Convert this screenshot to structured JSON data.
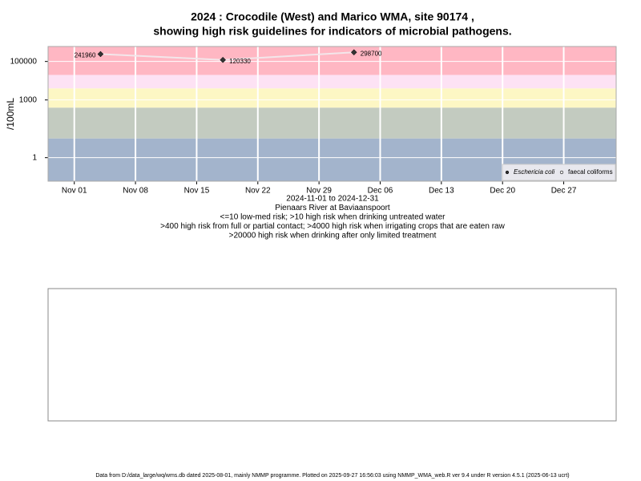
{
  "chart_data": {
    "type": "scatter",
    "title": "2024 : Crocodile (West) and Marico WMA, site 90174 ,",
    "subtitle": "showing high risk guidelines for indicators of microbial pathogens.",
    "ylabel": "/100mL",
    "xlabel_lines": [
      "2024-11-01 to 2024-12-31",
      "Pienaars River at Baviaanspoort",
      "<=10 low-med risk; >10 high risk when drinking untreated water",
      ">400 high risk from full or partial contact; >4000 high risk when irrigating crops that are eaten raw",
      ">20000 high risk when drinking after only limited treatment"
    ],
    "footer": "Data from D:/data_large/wq/wms.db dated 2025-08-01, mainly NMMP programme. Plotted on 2025-09-27 16:56:03 using NMMP_WMA_web.R ver 9.4 under R version 4.5.1 (2025-06-13 ucrt)",
    "ylog": true,
    "ylim": [
      0.06,
      600000
    ],
    "yticks": [
      1,
      1000,
      100000
    ],
    "xlim": [
      "2024-10-29",
      "2025-01-02"
    ],
    "xticks": [
      {
        "value": "2024-11-01",
        "label": "Nov 01"
      },
      {
        "value": "2024-11-08",
        "label": "Nov 08"
      },
      {
        "value": "2024-11-15",
        "label": "Nov 15"
      },
      {
        "value": "2024-11-22",
        "label": "Nov 22"
      },
      {
        "value": "2024-11-29",
        "label": "Nov 29"
      },
      {
        "value": "2024-12-06",
        "label": "Dec 06"
      },
      {
        "value": "2024-12-13",
        "label": "Dec 13"
      },
      {
        "value": "2024-12-20",
        "label": "Dec 20"
      },
      {
        "value": "2024-12-27",
        "label": "Dec 27"
      }
    ],
    "grid": true,
    "band_edges": [
      10,
      400,
      4000,
      20000
    ],
    "band_colors": [
      "#a3b4cc",
      "#c3cbc0",
      "#fdf7c4",
      "#fde2f4",
      "#ffb7c3"
    ],
    "legend": "bottomright",
    "series": [
      {
        "name": "Eschericia coli",
        "color": "#333333",
        "line_color": "#f3e6ea",
        "x": [
          "2024-11-04",
          "2024-11-18",
          "2024-12-03"
        ],
        "values": [
          241960,
          120330,
          298700
        ]
      },
      {
        "name": "faecal coliforms",
        "color": "#ffffff",
        "x": [],
        "values": []
      }
    ]
  }
}
